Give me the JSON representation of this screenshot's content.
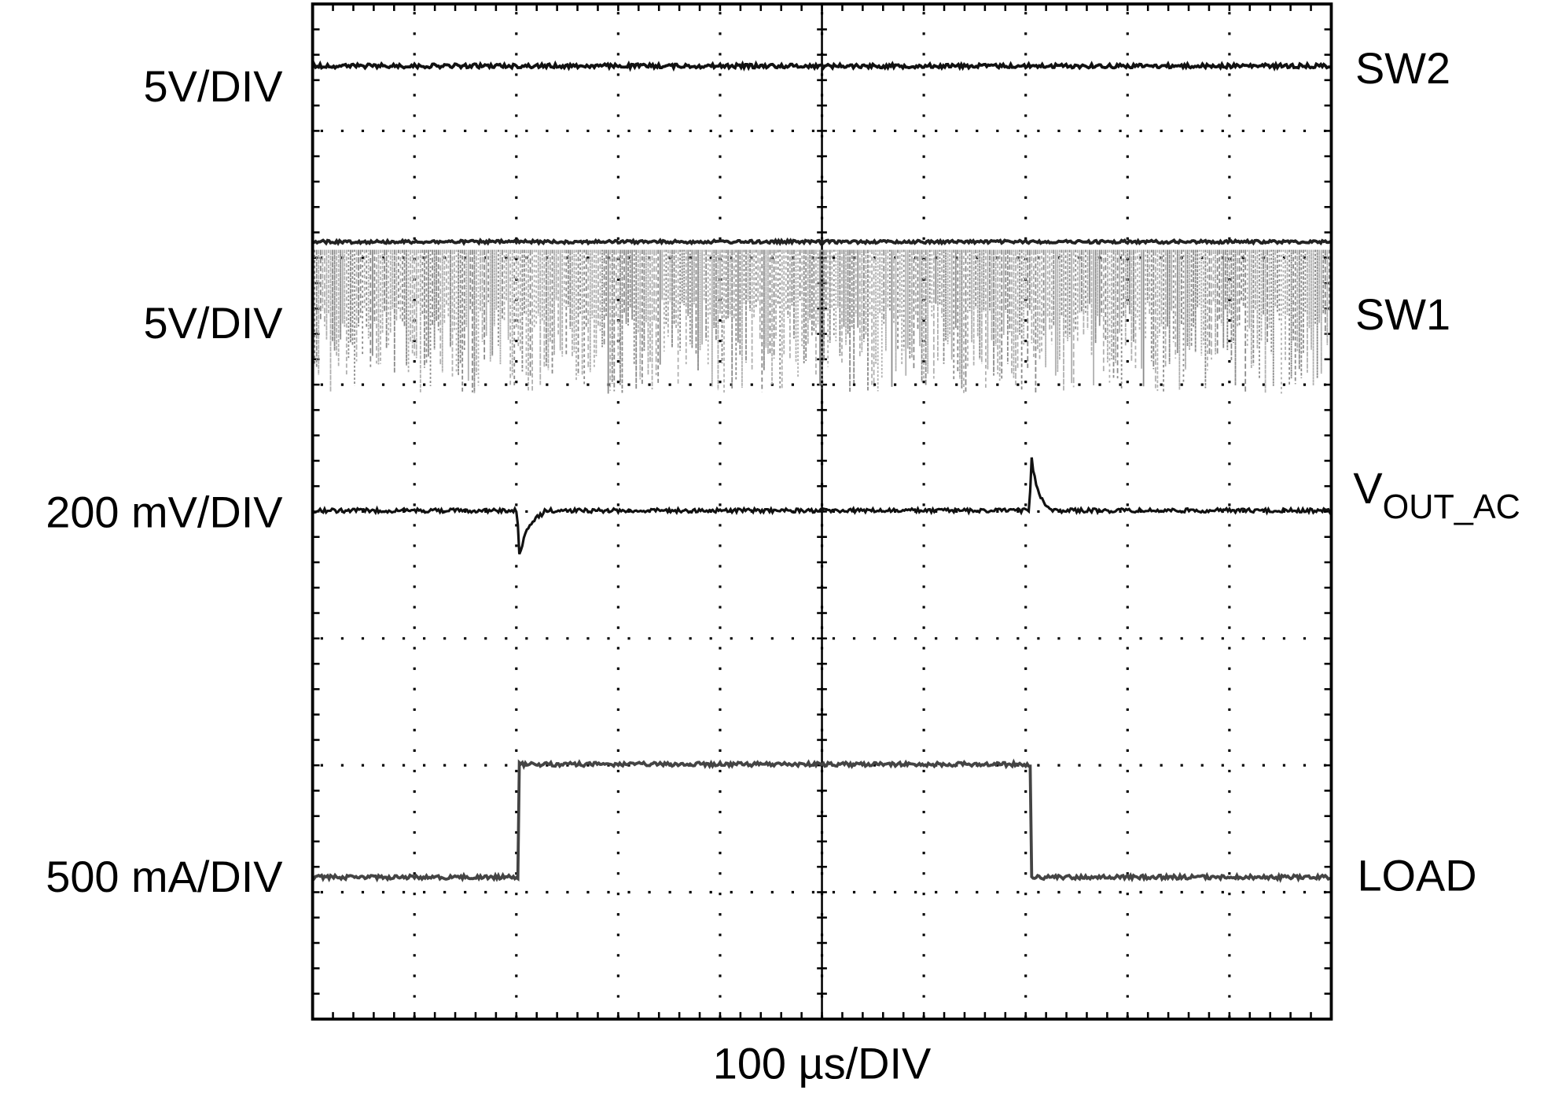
{
  "scale_labels": [
    "5V/DIV",
    "5V/DIV",
    "200 mV/DIV",
    "500 mA/DIV"
  ],
  "channel_labels": [
    "SW2",
    "SW1",
    {
      "main": "V",
      "subscript": "OUT_AC"
    },
    "LOAD"
  ],
  "time_label": "100 µs/DIV"
}
